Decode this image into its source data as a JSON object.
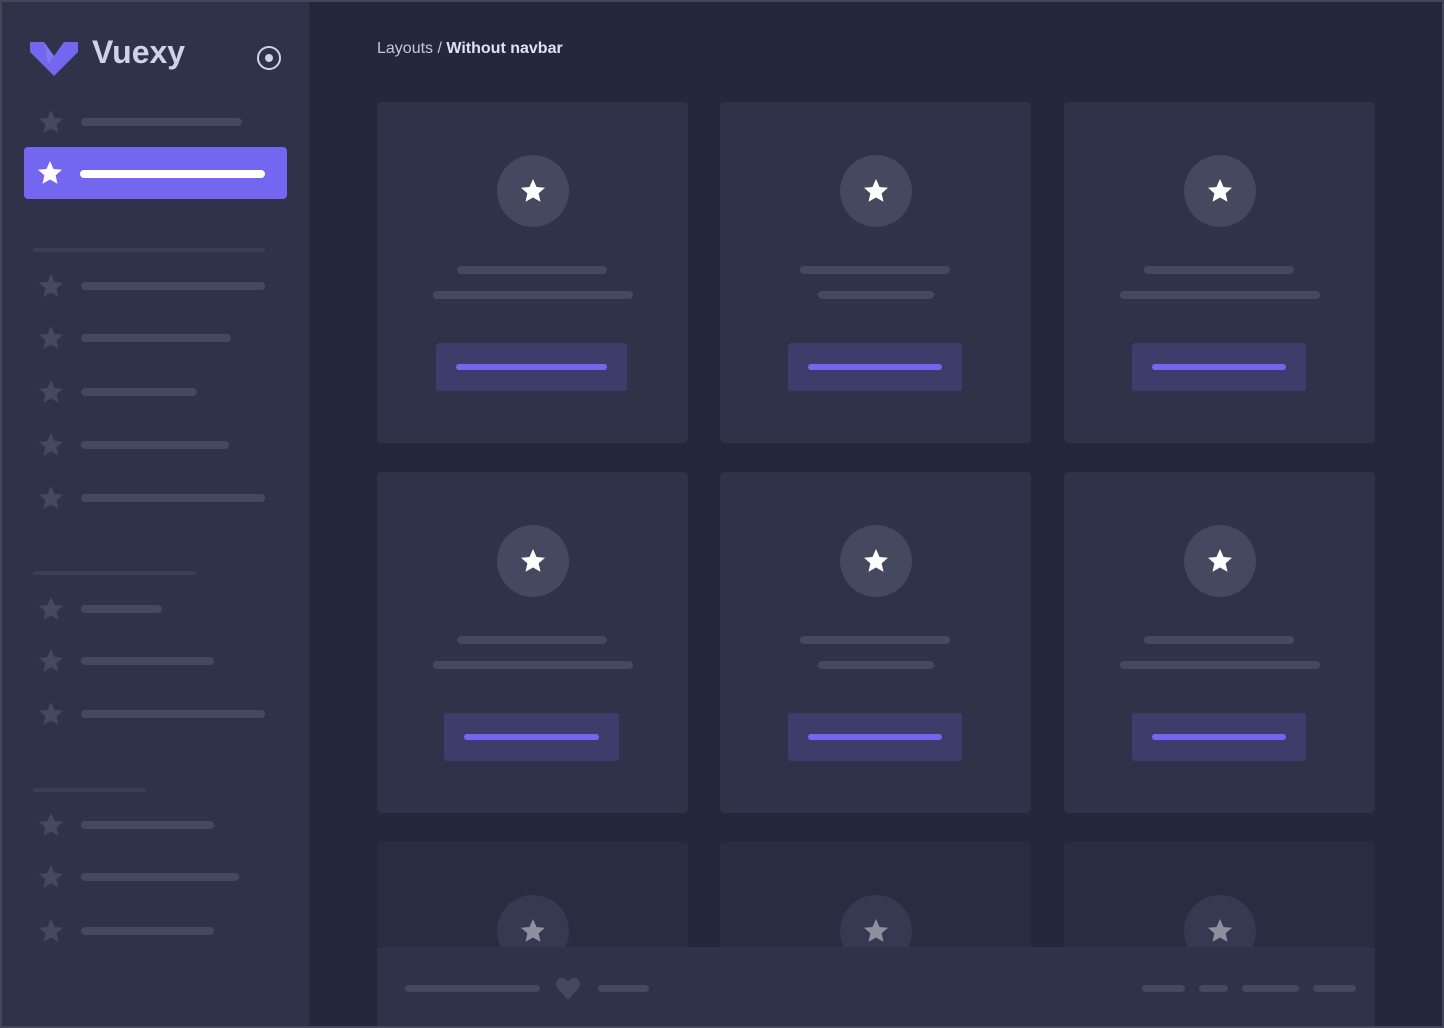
{
  "brand": {
    "name": "Vuexy",
    "logo_color": "#7367f0"
  },
  "sidebar": {
    "toggle_icon": "radio-circle-icon",
    "active_index": 1,
    "item_icon": "star-icon"
  },
  "breadcrumb": {
    "parent": "Layouts",
    "separator": " / ",
    "current": "Without navbar"
  },
  "colors": {
    "accent": "#7367f0",
    "sidebar_bg": "#2f3249",
    "content_bg": "#25283b",
    "card_bg": "#2f3249",
    "placeholder": "#464860"
  },
  "footer": {
    "icon": "heart-icon"
  }
}
